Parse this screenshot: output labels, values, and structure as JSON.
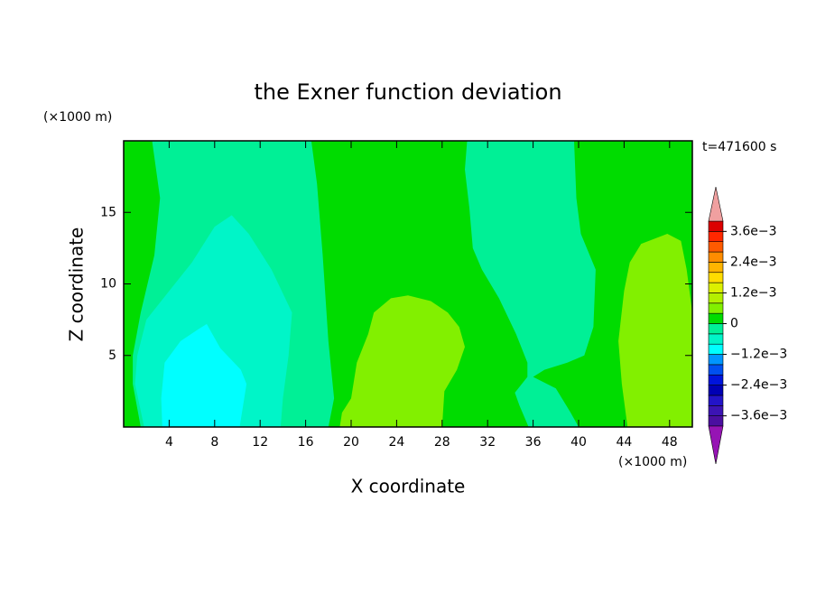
{
  "chart_data": {
    "type": "contour",
    "title": "the Exner function deviation",
    "x_label": "X coordinate",
    "y_label": "Z coordinate",
    "x_unit": "(×1000 m)",
    "y_unit": "(×1000 m)",
    "time_label": "t=471600 s",
    "xlim": [
      0,
      50
    ],
    "ylim": [
      0,
      20
    ],
    "xticks": [
      4,
      8,
      12,
      16,
      20,
      24,
      28,
      32,
      36,
      40,
      44,
      48
    ],
    "yticks": [
      5,
      10,
      15
    ],
    "colorbar": {
      "levels": [
        -0.004,
        -0.0036,
        -0.0032,
        -0.0028,
        -0.0024,
        -0.002,
        -0.0016,
        -0.0012,
        -0.0008,
        -0.0004,
        0,
        0.0004,
        0.0008,
        0.0012,
        0.0016,
        0.002,
        0.0024,
        0.0028,
        0.0032,
        0.0036,
        0.004
      ],
      "colors": [
        "#4b0fa0",
        "#3c14b4",
        "#2314c8",
        "#0000b4",
        "#0014dc",
        "#0050f0",
        "#0096ff",
        "#00ffff",
        "#00f5c8",
        "#00f096",
        "#00dc00",
        "#82f000",
        "#b4f000",
        "#dcf000",
        "#ffdc00",
        "#ffb400",
        "#ff8c00",
        "#ff5a00",
        "#ff2800",
        "#dc0000"
      ],
      "under_color": "#9614b4",
      "over_color": "#f0a0a0",
      "ticks": [
        {
          "value": 0.0036,
          "label": "3.6e−3"
        },
        {
          "value": 0.0024,
          "label": "2.4e−3"
        },
        {
          "value": 0.0012,
          "label": "1.2e−3"
        },
        0,
        {
          "value": -0.0012,
          "label": "−1.2e−3"
        },
        {
          "value": -0.0024,
          "label": "−2.4e−3"
        },
        {
          "value": -0.0036,
          "label": "−3.6e−3"
        }
      ]
    },
    "regions": [
      {
        "level": 0,
        "x": [
          0,
          50,
          50,
          0
        ],
        "z": [
          0,
          0,
          20,
          20
        ]
      },
      {
        "level": -0.0004,
        "x": [
          2.5,
          16.5,
          17,
          17.5,
          18,
          18.5,
          18,
          1.5,
          0.8,
          0.8,
          1.5,
          2.7,
          3.2
        ],
        "z": [
          20,
          20,
          17,
          12,
          6,
          2,
          0,
          0,
          3,
          5,
          8,
          12,
          16
        ]
      },
      {
        "level": -0.0008,
        "x": [
          9.5,
          11,
          13,
          14.8,
          14.5,
          14,
          13.8,
          1.8,
          1,
          1.2,
          2,
          4,
          6,
          8
        ],
        "z": [
          14.8,
          13.5,
          11,
          8,
          5,
          2,
          0,
          0,
          3,
          5,
          7.5,
          9.5,
          11.5,
          14
        ]
      },
      {
        "level": -0.0012,
        "x": [
          7.3,
          8.5,
          10.3,
          10.8,
          10.2,
          3.4,
          3.3,
          3.6,
          5,
          6.5
        ],
        "z": [
          7.2,
          5.5,
          4,
          3,
          0,
          0,
          2,
          4.5,
          6,
          6.8
        ]
      },
      {
        "level": 0.0004,
        "x": [
          19,
          28,
          28.2,
          29.3,
          30,
          29.5,
          28.5,
          27,
          25,
          23.5,
          22,
          21.5,
          20.5,
          20,
          19.2
        ],
        "z": [
          0,
          0,
          2.5,
          4,
          5.6,
          7,
          8,
          8.8,
          9.2,
          9,
          8,
          6.5,
          4.5,
          2,
          1
        ]
      },
      {
        "level": 0.0004,
        "x": [
          44.3,
          50,
          50,
          49.5,
          49,
          47.8,
          45.5,
          44.5,
          44,
          43.5,
          43.8
        ],
        "z": [
          0,
          0,
          8,
          11,
          13,
          13.5,
          12.8,
          11.5,
          9.5,
          6,
          3
        ]
      },
      {
        "level": -0.0004,
        "x": [
          30.2,
          39.6,
          39.8,
          40.2,
          41.5,
          41.3,
          40.5,
          39,
          37,
          36,
          38,
          39.3,
          40,
          35.6,
          34.8,
          34.4,
          35.5,
          35.5,
          34.5,
          33,
          31.5,
          30.7,
          30.4,
          30
        ],
        "z": [
          20,
          20,
          16,
          13.5,
          11,
          7,
          5,
          4.5,
          4,
          3.5,
          2.7,
          1,
          0,
          0,
          1.5,
          2.4,
          3.5,
          4.5,
          6.5,
          9,
          11,
          12.5,
          15.3,
          18
        ]
      }
    ]
  }
}
